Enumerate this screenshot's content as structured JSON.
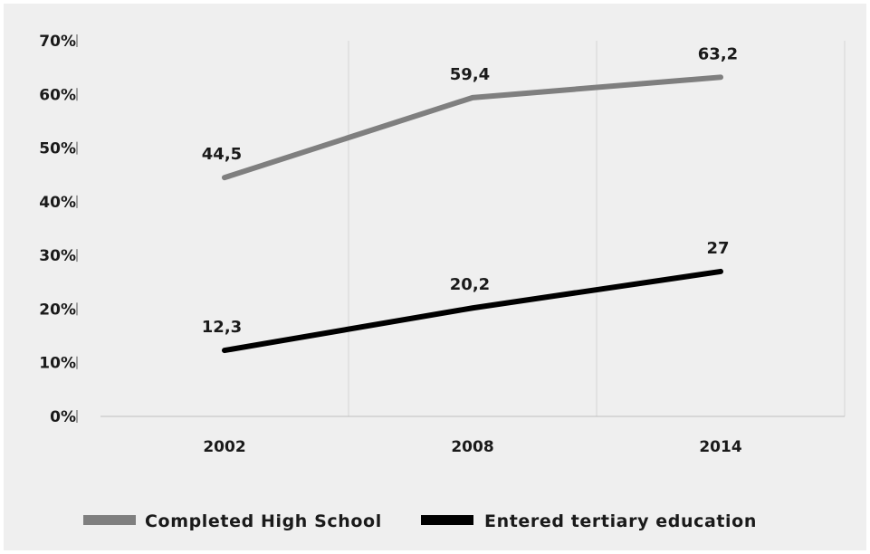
{
  "chart_data": {
    "type": "line",
    "categories": [
      "2002",
      "2008",
      "2014"
    ],
    "series": [
      {
        "name": "Completed High School",
        "values": [
          44.5,
          59.4,
          63.2
        ],
        "labels": [
          "44,5",
          "59,4",
          "63,2"
        ],
        "color": "#7f7f7f"
      },
      {
        "name": "Entered tertiary education",
        "values": [
          12.3,
          20.2,
          27
        ],
        "labels": [
          "12,3",
          "20,2",
          "27"
        ],
        "color": "#000000"
      }
    ],
    "y_ticks": [
      {
        "value": 0,
        "label": "0%"
      },
      {
        "value": 10,
        "label": "10%"
      },
      {
        "value": 20,
        "label": "20%"
      },
      {
        "value": 30,
        "label": "30%"
      },
      {
        "value": 40,
        "label": "40%"
      },
      {
        "value": 50,
        "label": "50%"
      },
      {
        "value": 60,
        "label": "60%"
      },
      {
        "value": 70,
        "label": "70%"
      }
    ],
    "ylim": [
      0,
      70
    ],
    "grid": "vertical",
    "legend_position": "bottom-left",
    "colors": {
      "background": "#efefef",
      "gridline": "#d4d4d4",
      "axis": "#bfbfbf"
    }
  }
}
